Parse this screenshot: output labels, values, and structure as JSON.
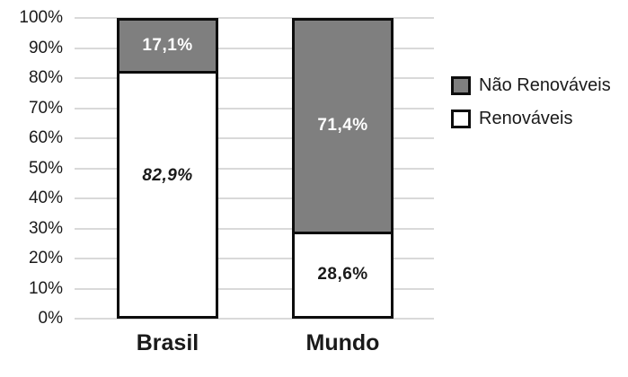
{
  "chart_data": {
    "type": "bar",
    "stacked": true,
    "title": "",
    "xlabel": "",
    "ylabel": "",
    "categories": [
      "Brasil",
      "Mundo"
    ],
    "series": [
      {
        "name": "Renováveis",
        "color": "#ffffff",
        "values": [
          82.9,
          28.6
        ],
        "labels": [
          "82,9%",
          "28,6%"
        ],
        "label_color": "#1a1a1a",
        "label_italic": [
          true,
          false
        ],
        "label_frac": [
          0.42,
          0.5
        ]
      },
      {
        "name": "Não Renováveis",
        "color": "#7f7f7f",
        "values": [
          17.1,
          71.4
        ],
        "labels": [
          "17,1%",
          "71,4%"
        ],
        "label_color": "#ffffff",
        "label_italic": [
          false,
          false
        ],
        "label_frac": [
          0.5,
          0.5
        ]
      }
    ],
    "y_axis": {
      "min": 0,
      "max": 100,
      "step": 10,
      "tick_labels": [
        "0%",
        "10%",
        "20%",
        "30%",
        "40%",
        "50%",
        "60%",
        "70%",
        "80%",
        "90%",
        "100%"
      ]
    },
    "legend": {
      "position": "right",
      "entries": [
        "Não Renováveis",
        "Renováveis"
      ]
    },
    "grid": true,
    "gridline_color": "#d9d9d9",
    "bar_border_color": "#0d0d0d"
  }
}
